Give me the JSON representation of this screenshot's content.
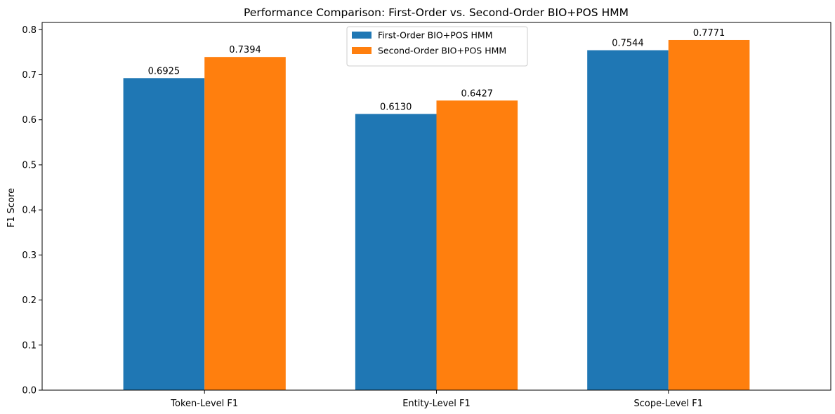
{
  "chart_data": {
    "type": "bar",
    "title": "Performance Comparison: First-Order vs. Second-Order BIO+POS HMM",
    "xlabel": "",
    "ylabel": "F1 Score",
    "categories": [
      "Token-Level F1",
      "Entity-Level F1",
      "Scope-Level F1"
    ],
    "series": [
      {
        "name": "First-Order BIO+POS HMM",
        "color": "#1f77b4",
        "values": [
          0.6925,
          0.613,
          0.7544
        ],
        "labels": [
          "0.6925",
          "0.6130",
          "0.7544"
        ]
      },
      {
        "name": "Second-Order BIO+POS HMM",
        "color": "#ff7f0e",
        "values": [
          0.7394,
          0.6427,
          0.7771
        ],
        "labels": [
          "0.7394",
          "0.6427",
          "0.7771"
        ]
      }
    ],
    "ylim": [
      0,
      0.816
    ],
    "yticks": [
      0.0,
      0.1,
      0.2,
      0.3,
      0.4,
      0.5,
      0.6,
      0.7,
      0.8
    ],
    "ytick_labels": [
      "0.0",
      "0.1",
      "0.2",
      "0.3",
      "0.4",
      "0.5",
      "0.6",
      "0.7",
      "0.8"
    ],
    "grid": false,
    "legend_position": "top-center"
  }
}
